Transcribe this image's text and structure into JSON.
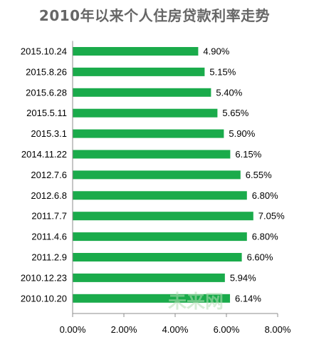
{
  "chart_data": {
    "type": "bar",
    "orientation": "horizontal",
    "title": "2010年以来个人住房贷款利率走势",
    "categories": [
      "2015.10.24",
      "2015.8.26",
      "2015.6.28",
      "2015.5.11",
      "2015.3.1",
      "2014.11.22",
      "2012.7.6",
      "2012.6.8",
      "2011.7.7",
      "2011.4.6",
      "2011.2.9",
      "2010.12.23",
      "2010.10.20"
    ],
    "values": [
      4.9,
      5.15,
      5.4,
      5.65,
      5.9,
      6.15,
      6.55,
      6.8,
      7.05,
      6.8,
      6.6,
      5.94,
      6.14
    ],
    "value_labels": [
      "4.90%",
      "5.15%",
      "5.40%",
      "5.65%",
      "5.90%",
      "6.15%",
      "6.55%",
      "6.80%",
      "7.05%",
      "6.80%",
      "6.60%",
      "5.94%",
      "6.14%"
    ],
    "xlim": [
      0,
      8
    ],
    "x_ticks": [
      0,
      2,
      4,
      6,
      8
    ],
    "x_tick_labels": [
      "0.00%",
      "2.00%",
      "4.00%",
      "6.00%",
      "8.00%"
    ],
    "xlabel": "",
    "ylabel": "",
    "bar_color": "#1aab4b",
    "grid": false,
    "legend": "none"
  },
  "watermark": "未来网"
}
